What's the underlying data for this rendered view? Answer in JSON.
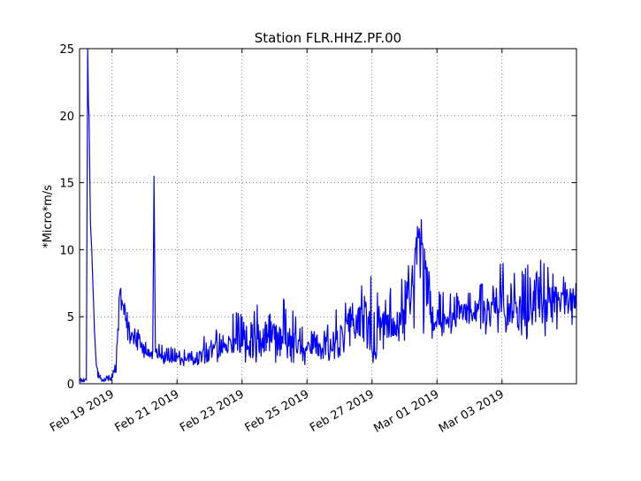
{
  "chart_data": {
    "type": "line",
    "title": "Station FLR.HHZ.PF.00",
    "xlabel": "",
    "ylabel": "*Micro*m/s",
    "ylim": [
      0,
      25
    ],
    "xlim": [
      "2019-02-18T00:00",
      "2019-03-05T07:00"
    ],
    "grid": true,
    "line_color": "#0000ff",
    "x_ticks": [
      {
        "date": "2019-02-19",
        "label": "Feb 19 2019"
      },
      {
        "date": "2019-02-21",
        "label": "Feb 21 2019"
      },
      {
        "date": "2019-02-23",
        "label": "Feb 23 2019"
      },
      {
        "date": "2019-02-25",
        "label": "Feb 25 2019"
      },
      {
        "date": "2019-02-27",
        "label": "Feb 27 2019"
      },
      {
        "date": "2019-03-01",
        "label": "Mar 01 2019"
      },
      {
        "date": "2019-03-03",
        "label": "Mar 03 2019"
      }
    ],
    "y_ticks": [
      0,
      5,
      10,
      15,
      20,
      25
    ],
    "series": [
      {
        "x": [
          "2019-02-18T00:00",
          "2019-02-18T05:00",
          "2019-02-18T06:00",
          "2019-02-18T06:30",
          "2019-02-18T07:00",
          "2019-02-18T08:00",
          "2019-02-18T09:00",
          "2019-02-18T10:00",
          "2019-02-18T11:00",
          "2019-02-18T12:00",
          "2019-02-18T14:00",
          "2019-02-18T16:00",
          "2019-02-18T18:00",
          "2019-02-18T20:00",
          "2019-02-19T00:00",
          "2019-02-19T03:00",
          "2019-02-19T06:00",
          "2019-02-19T08:00",
          "2019-02-19T12:00",
          "2019-02-19T18:00",
          "2019-02-20T00:00",
          "2019-02-20T04:00",
          "2019-02-20T06:00",
          "2019-02-20T07:00",
          "2019-02-20T08:00",
          "2019-02-20T09:00",
          "2019-02-20T12:00",
          "2019-02-20T18:00",
          "2019-02-21T00:00",
          "2019-02-21T12:00",
          "2019-02-21T18:00",
          "2019-02-21T19:00",
          "2019-02-21T20:00",
          "2019-02-22T00:00",
          "2019-02-22T12:00",
          "2019-02-23T00:00",
          "2019-02-23T12:00",
          "2019-02-24T00:00",
          "2019-02-24T12:00",
          "2019-02-24T18:00",
          "2019-02-25T00:00",
          "2019-02-25T12:00",
          "2019-02-26T00:00",
          "2019-02-26T06:00",
          "2019-02-26T12:00",
          "2019-02-26T18:00",
          "2019-02-27T00:00",
          "2019-02-27T06:00",
          "2019-02-27T12:00",
          "2019-02-28T00:00",
          "2019-02-28T12:00",
          "2019-02-28T20:00",
          "2019-03-01T00:00",
          "2019-03-01T12:00",
          "2019-03-02T00:00",
          "2019-03-02T12:00",
          "2019-03-03T00:00",
          "2019-03-03T12:00",
          "2019-03-04T00:00",
          "2019-03-04T12:00",
          "2019-03-05T00:00",
          "2019-03-05T07:00"
        ],
        "y": [
          0.2,
          0.3,
          25,
          21,
          20,
          12,
          10,
          7,
          4,
          2,
          0.6,
          0.3,
          0.2,
          0.3,
          0.5,
          1.5,
          7,
          6,
          4,
          3,
          2.5,
          2.4,
          2.4,
          15.5,
          2.4,
          2.3,
          2.2,
          2.0,
          1.8,
          1.7,
          1.6,
          2.5,
          2.6,
          2.6,
          2.8,
          3.0,
          3.2,
          3.2,
          3.0,
          2.8,
          2.5,
          2.4,
          3.5,
          4.2,
          4.5,
          5.5,
          2.5,
          4.0,
          4.3,
          4.6,
          11.5,
          4.8,
          4.9,
          5.0,
          5.2,
          5.5,
          5.7,
          5.5,
          5.8,
          6.0,
          6.2,
          6.0
        ],
        "envelope_high": [
          0.4,
          0.5,
          25,
          25,
          21,
          17,
          12,
          9,
          5,
          2.5,
          0.9,
          0.6,
          0.5,
          0.6,
          1.0,
          2.5,
          8.5,
          7,
          5,
          4.2,
          3.5,
          3.3,
          3.3,
          15.5,
          3.3,
          3.2,
          3.0,
          2.8,
          2.6,
          2.5,
          2.4,
          3.2,
          4.0,
          4.5,
          5.0,
          5.5,
          6.2,
          6.9,
          5.8,
          4.5,
          4.0,
          3.8,
          6.0,
          6.4,
          6.0,
          8.0,
          9.0,
          6.0,
          7.0,
          8.0,
          11.5,
          7.5,
          7.0,
          7.2,
          7.2,
          7.5,
          9.2,
          8.0,
          9.7,
          8.5,
          8.0,
          7.5
        ],
        "envelope_low": [
          0.1,
          0.1,
          0.2,
          15,
          12,
          9,
          8,
          5,
          3,
          1,
          0.3,
          0.1,
          0.1,
          0.1,
          0.2,
          0.8,
          5,
          4,
          3,
          2.2,
          1.9,
          1.8,
          1.8,
          2.0,
          1.8,
          1.7,
          1.6,
          1.4,
          1.3,
          1.2,
          1.1,
          1.8,
          1.5,
          1.4,
          1.8,
          1.5,
          1.6,
          1.5,
          1.6,
          1.2,
          1.3,
          1.4,
          1.8,
          2.2,
          2.5,
          2.8,
          1.8,
          2.2,
          2.6,
          3.0,
          3.5,
          3.2,
          3.5,
          3.5,
          3.8,
          3.5,
          3.6,
          3.4,
          3.2,
          3.5,
          4.5,
          4.2
        ]
      }
    ]
  }
}
